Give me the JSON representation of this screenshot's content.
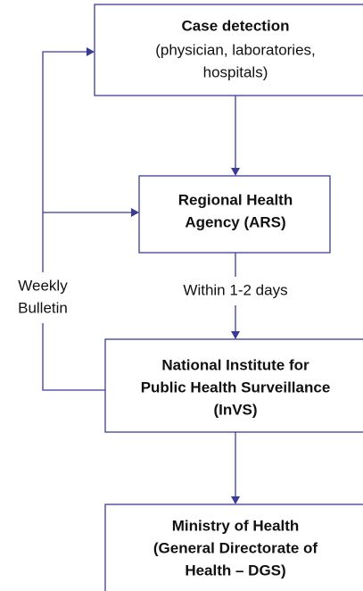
{
  "nodes": [
    {
      "title": [
        "Case detection"
      ],
      "detail": [
        "(physician, laboratories,",
        "hospitals)"
      ]
    },
    {
      "title": [
        "Regional Health",
        "Agency (ARS)"
      ],
      "detail": []
    },
    {
      "title": [
        "National Institute for",
        "Public Health Surveillance",
        "(InVS)"
      ],
      "detail": []
    },
    {
      "title": [
        "Ministry of Health",
        "(General Directorate of",
        "Health – DGS)"
      ],
      "detail": []
    }
  ],
  "edges": [
    {
      "label": "Within 1-2 days"
    },
    {
      "label": [
        "Weekly",
        "Bulletin"
      ]
    }
  ]
}
